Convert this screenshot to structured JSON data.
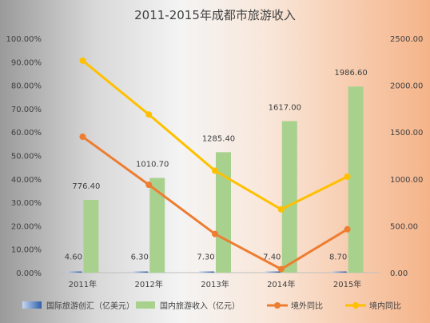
{
  "chart_data": {
    "type": "bar",
    "title": "2011-2015年成都市旅游收入",
    "categories": [
      "2011年",
      "2012年",
      "2013年",
      "2014年",
      "2015年"
    ],
    "left_axis": {
      "ylim": [
        0,
        100
      ],
      "ticks": [
        "0.00%",
        "10.00%",
        "20.00%",
        "30.00%",
        "40.00%",
        "50.00%",
        "60.00%",
        "70.00%",
        "80.00%",
        "90.00%",
        "100.00%"
      ]
    },
    "right_axis": {
      "ylim": [
        0,
        2500
      ],
      "ticks": [
        "0.00",
        "500.00",
        "1000.00",
        "1500.00",
        "2000.00",
        "2500.00"
      ]
    },
    "series": [
      {
        "name": "国际旅游创汇（亿美元）",
        "type": "bar",
        "axis": "right",
        "values": [
          4.6,
          6.3,
          7.3,
          7.4,
          8.7
        ],
        "labels": [
          "4.60",
          "6.30",
          "7.30",
          "7.40",
          "8.70"
        ],
        "color": "#4a78c2"
      },
      {
        "name": "国内旅游收入（亿元）",
        "type": "bar",
        "axis": "right",
        "values": [
          776.4,
          1010.7,
          1285.4,
          1617.0,
          1986.6
        ],
        "labels": [
          "776.40",
          "1010.70",
          "1285.40",
          "1617.00",
          "1986.60"
        ],
        "color": "#a9d18e"
      },
      {
        "name": "境外同比",
        "type": "line",
        "axis": "left",
        "values": [
          58.0,
          37.5,
          16.5,
          1.5,
          18.5
        ],
        "color": "#ed7d31"
      },
      {
        "name": "境内同比",
        "type": "line",
        "axis": "left",
        "values": [
          90.5,
          67.5,
          43.5,
          27.0,
          41.0
        ],
        "color": "#ffc000"
      }
    ],
    "legend_position": "bottom",
    "grid": false
  }
}
